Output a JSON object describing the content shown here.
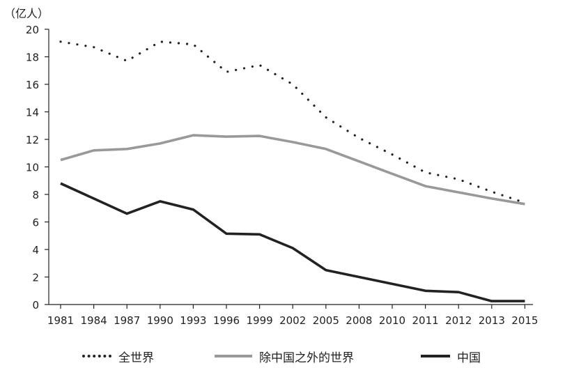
{
  "chart_data": {
    "type": "line",
    "unit_label": "（亿人）",
    "categories": [
      "1981",
      "1984",
      "1987",
      "1990",
      "1993",
      "1996",
      "1999",
      "2002",
      "2005",
      "2008",
      "2010",
      "2011",
      "2012",
      "2013",
      "2015"
    ],
    "x": [
      1981,
      1984,
      1987,
      1990,
      1993,
      1996,
      1999,
      2002,
      2005,
      2008,
      2010,
      2011,
      2012,
      2013,
      2015
    ],
    "ylim": [
      0,
      20
    ],
    "yticks": [
      0,
      2,
      4,
      6,
      8,
      10,
      12,
      14,
      16,
      18,
      20
    ],
    "series": [
      {
        "name": "全世界",
        "style": "dotted",
        "color": "#222222",
        "x": [
          1981,
          1984,
          1987,
          1990,
          1993,
          1996,
          1999,
          2002,
          2005,
          2008,
          2010,
          2011,
          2012,
          2013,
          2015
        ],
        "values": [
          19.1,
          18.7,
          17.7,
          19.1,
          18.9,
          16.9,
          17.4,
          16.0,
          13.6,
          12.1,
          10.9,
          9.6,
          9.1,
          8.2,
          7.4
        ]
      },
      {
        "name": "除中国之外的世界",
        "style": "solid",
        "color": "#999999",
        "x": [
          1981,
          1984,
          1987,
          1990,
          1993,
          1996,
          1999,
          2002,
          2005,
          2008,
          2010,
          2011,
          2012,
          2013,
          2015
        ],
        "values": [
          10.5,
          11.2,
          11.3,
          11.7,
          12.3,
          12.2,
          12.25,
          11.8,
          11.3,
          10.4,
          9.5,
          8.6,
          8.15,
          7.7,
          7.3
        ]
      },
      {
        "name": "中国",
        "style": "solid",
        "color": "#222222",
        "x": [
          1981,
          1984,
          1987,
          1990,
          1993,
          1996,
          1999,
          2002,
          2005,
          2008,
          2010,
          2011,
          2012,
          2013,
          2015
        ],
        "values": [
          8.8,
          7.7,
          6.6,
          7.5,
          6.9,
          5.15,
          5.1,
          4.1,
          2.5,
          2.0,
          1.5,
          1.0,
          0.9,
          0.25,
          0.25
        ]
      }
    ],
    "legend_position": "bottom"
  }
}
